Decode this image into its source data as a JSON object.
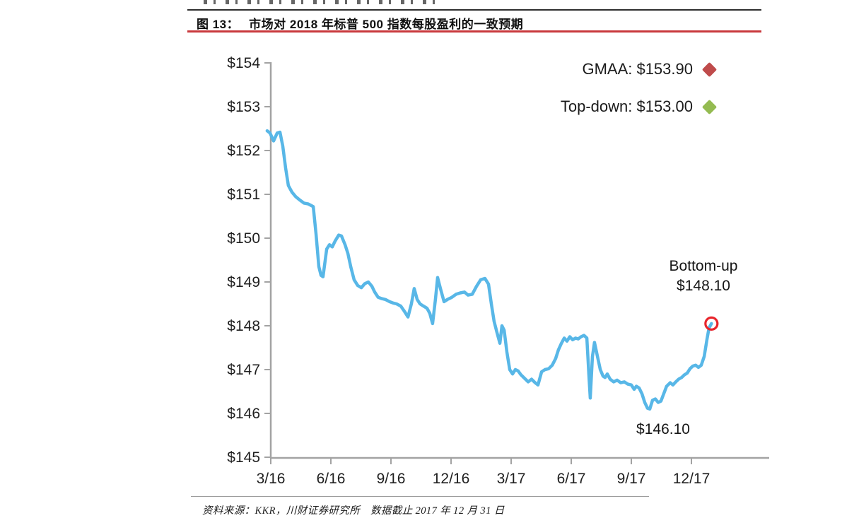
{
  "page": {
    "figure_label": "图 13：",
    "figure_title": "市场对 2018 年标普 500 指数每股盈利的一致预期",
    "source_note": "资料来源：KKR，川财证券研究所　数据截止 2017 年 12 月 31 日",
    "accent_red": "#c9393d"
  },
  "chart_data": {
    "type": "line",
    "title": "市场对 2018 年标普 500 指数每股盈利的一致预期 (2018 S&P 500 consensus EPS)",
    "xlabel": "",
    "ylabel": "",
    "grid": false,
    "legend_position": "top-right",
    "axis_color": "#a3a3a3",
    "tick_text_color": "#1f1f1f",
    "ylim": [
      145,
      154
    ],
    "x_unit": "months after the 3/16 tick",
    "y_ticks": [
      {
        "value": 154,
        "label": "$154"
      },
      {
        "value": 153,
        "label": "$153"
      },
      {
        "value": 152,
        "label": "$152"
      },
      {
        "value": 151,
        "label": "$151"
      },
      {
        "value": 150,
        "label": "$150"
      },
      {
        "value": 149,
        "label": "$149"
      },
      {
        "value": 148,
        "label": "$148"
      },
      {
        "value": 147,
        "label": "$147"
      },
      {
        "value": 146,
        "label": "$146"
      },
      {
        "value": 145,
        "label": "$145"
      }
    ],
    "x_ticks": [
      {
        "month": 0,
        "label": "3/16"
      },
      {
        "month": 3,
        "label": "6/16"
      },
      {
        "month": 6,
        "label": "9/16"
      },
      {
        "month": 9,
        "label": "12/16"
      },
      {
        "month": 12,
        "label": "3/17"
      },
      {
        "month": 15,
        "label": "6/17"
      },
      {
        "month": 18,
        "label": "9/17"
      },
      {
        "month": 21,
        "label": "12/17"
      }
    ],
    "legend": [
      {
        "label": "GMAA: $153.90",
        "value": 153.9,
        "color": "#bf4b4b"
      },
      {
        "label": "Top-down: $153.00",
        "value": 153.0,
        "color": "#94bb51"
      }
    ],
    "annotations": [
      {
        "name": "bottom-up-estimate",
        "lines": [
          "Bottom-up",
          "$148.10"
        ],
        "value": 148.1
      },
      {
        "name": "series-low",
        "lines": [
          "$146.10"
        ],
        "value": 146.1
      }
    ],
    "end_marker": {
      "x_months": 22.0,
      "value": 148.05,
      "color": "#e8252c"
    },
    "series": [
      {
        "name": "Bottom-up consensus 2018 EPS",
        "color": "#58b7e7",
        "points": [
          [
            -0.18,
            152.45
          ],
          [
            -0.04,
            152.4
          ],
          [
            0.14,
            152.22
          ],
          [
            0.32,
            152.4
          ],
          [
            0.46,
            152.42
          ],
          [
            0.6,
            152.1
          ],
          [
            0.74,
            151.6
          ],
          [
            0.88,
            151.2
          ],
          [
            1.06,
            151.05
          ],
          [
            1.24,
            150.95
          ],
          [
            1.45,
            150.87
          ],
          [
            1.66,
            150.8
          ],
          [
            1.87,
            150.78
          ],
          [
            2.12,
            150.72
          ],
          [
            2.26,
            150.1
          ],
          [
            2.4,
            149.35
          ],
          [
            2.51,
            149.15
          ],
          [
            2.61,
            149.12
          ],
          [
            2.79,
            149.75
          ],
          [
            2.93,
            149.85
          ],
          [
            3.07,
            149.8
          ],
          [
            3.21,
            149.93
          ],
          [
            3.39,
            150.07
          ],
          [
            3.53,
            150.05
          ],
          [
            3.71,
            149.85
          ],
          [
            3.85,
            149.65
          ],
          [
            3.99,
            149.35
          ],
          [
            4.16,
            149.05
          ],
          [
            4.34,
            148.92
          ],
          [
            4.52,
            148.87
          ],
          [
            4.69,
            148.96
          ],
          [
            4.87,
            149.0
          ],
          [
            5.05,
            148.9
          ],
          [
            5.19,
            148.77
          ],
          [
            5.36,
            148.65
          ],
          [
            5.54,
            148.62
          ],
          [
            5.72,
            148.6
          ],
          [
            5.93,
            148.55
          ],
          [
            6.11,
            148.52
          ],
          [
            6.28,
            148.5
          ],
          [
            6.49,
            148.45
          ],
          [
            6.67,
            148.33
          ],
          [
            6.85,
            148.2
          ],
          [
            7.02,
            148.5
          ],
          [
            7.16,
            148.85
          ],
          [
            7.31,
            148.6
          ],
          [
            7.45,
            148.5
          ],
          [
            7.62,
            148.45
          ],
          [
            7.8,
            148.4
          ],
          [
            7.94,
            148.28
          ],
          [
            8.08,
            148.05
          ],
          [
            8.22,
            148.6
          ],
          [
            8.33,
            149.1
          ],
          [
            8.47,
            148.85
          ],
          [
            8.65,
            148.55
          ],
          [
            8.82,
            148.6
          ],
          [
            9.04,
            148.65
          ],
          [
            9.25,
            148.72
          ],
          [
            9.46,
            148.75
          ],
          [
            9.67,
            148.77
          ],
          [
            9.85,
            148.7
          ],
          [
            10.06,
            148.72
          ],
          [
            10.27,
            148.9
          ],
          [
            10.48,
            149.05
          ],
          [
            10.69,
            149.08
          ],
          [
            10.87,
            148.95
          ],
          [
            11.01,
            148.5
          ],
          [
            11.15,
            148.1
          ],
          [
            11.29,
            147.85
          ],
          [
            11.44,
            147.6
          ],
          [
            11.54,
            148.0
          ],
          [
            11.65,
            147.9
          ],
          [
            11.79,
            147.4
          ],
          [
            11.93,
            147.0
          ],
          [
            12.07,
            146.9
          ],
          [
            12.21,
            147.0
          ],
          [
            12.35,
            146.97
          ],
          [
            12.49,
            146.88
          ],
          [
            12.67,
            146.8
          ],
          [
            12.85,
            146.72
          ],
          [
            13.02,
            146.78
          ],
          [
            13.2,
            146.7
          ],
          [
            13.34,
            146.65
          ],
          [
            13.52,
            146.95
          ],
          [
            13.69,
            147.0
          ],
          [
            13.87,
            147.02
          ],
          [
            14.05,
            147.1
          ],
          [
            14.22,
            147.25
          ],
          [
            14.36,
            147.45
          ],
          [
            14.51,
            147.6
          ],
          [
            14.65,
            147.72
          ],
          [
            14.79,
            147.65
          ],
          [
            14.93,
            147.75
          ],
          [
            15.07,
            147.68
          ],
          [
            15.21,
            147.72
          ],
          [
            15.35,
            147.7
          ],
          [
            15.49,
            147.75
          ],
          [
            15.64,
            147.78
          ],
          [
            15.78,
            147.72
          ],
          [
            15.88,
            146.9
          ],
          [
            15.95,
            146.35
          ],
          [
            16.06,
            147.3
          ],
          [
            16.16,
            147.62
          ],
          [
            16.31,
            147.3
          ],
          [
            16.45,
            147.0
          ],
          [
            16.59,
            146.85
          ],
          [
            16.69,
            146.82
          ],
          [
            16.8,
            146.9
          ],
          [
            16.94,
            146.78
          ],
          [
            17.12,
            146.72
          ],
          [
            17.29,
            146.76
          ],
          [
            17.47,
            146.7
          ],
          [
            17.65,
            146.72
          ],
          [
            17.82,
            146.67
          ],
          [
            18.0,
            146.65
          ],
          [
            18.14,
            146.55
          ],
          [
            18.25,
            146.62
          ],
          [
            18.39,
            146.58
          ],
          [
            18.53,
            146.45
          ],
          [
            18.67,
            146.25
          ],
          [
            18.81,
            146.12
          ],
          [
            18.92,
            146.1
          ],
          [
            19.06,
            146.3
          ],
          [
            19.2,
            146.33
          ],
          [
            19.34,
            146.25
          ],
          [
            19.48,
            146.28
          ],
          [
            19.62,
            146.45
          ],
          [
            19.76,
            146.62
          ],
          [
            19.94,
            146.7
          ],
          [
            20.08,
            146.65
          ],
          [
            20.22,
            146.72
          ],
          [
            20.36,
            146.78
          ],
          [
            20.51,
            146.82
          ],
          [
            20.65,
            146.88
          ],
          [
            20.79,
            146.92
          ],
          [
            20.93,
            147.02
          ],
          [
            21.07,
            147.08
          ],
          [
            21.21,
            147.1
          ],
          [
            21.35,
            147.05
          ],
          [
            21.49,
            147.1
          ],
          [
            21.64,
            147.3
          ],
          [
            21.78,
            147.7
          ],
          [
            21.88,
            147.95
          ],
          [
            22.0,
            148.05
          ]
        ]
      }
    ]
  }
}
